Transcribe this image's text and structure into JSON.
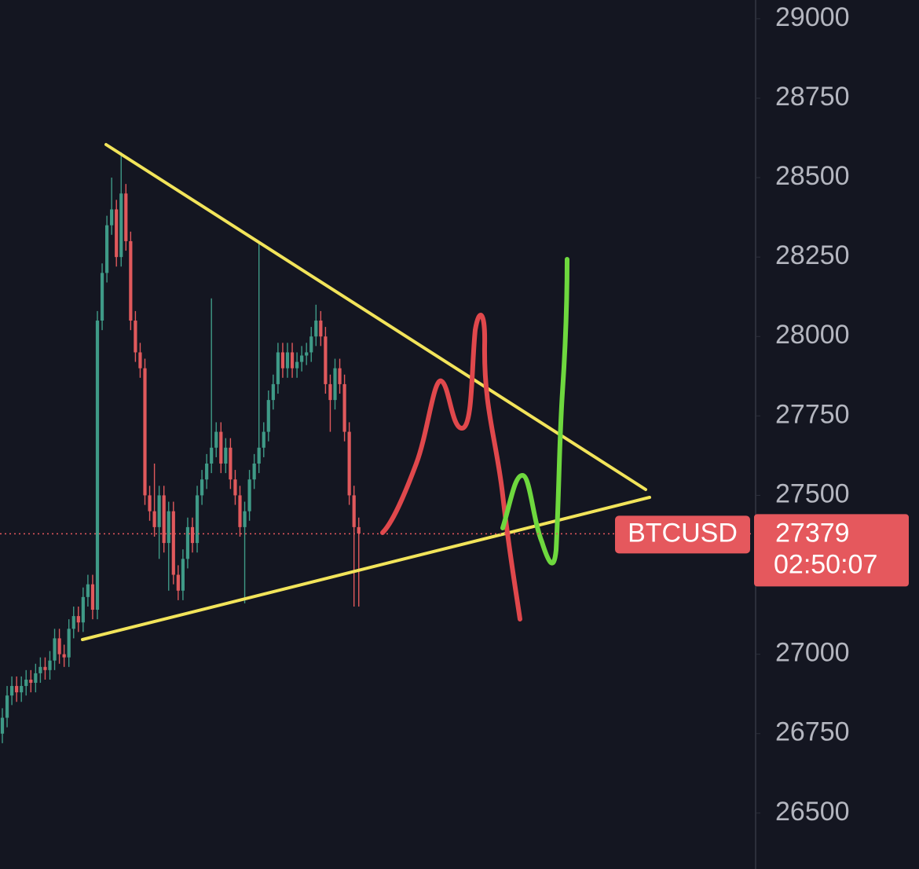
{
  "chart_data": {
    "type": "candlestick",
    "open": [
      26750,
      26800,
      26870,
      26900,
      26880,
      26900,
      26920,
      26910,
      26940,
      26960,
      26950,
      26980,
      27050,
      27000,
      26990,
      27080,
      27120,
      27100,
      27180,
      27220,
      27140,
      28050,
      28200,
      28350,
      28400,
      28250,
      28450,
      28300,
      28050,
      27950,
      27900,
      27500,
      27450,
      27400,
      27500,
      27350,
      27450,
      27250,
      27200,
      27300,
      27400,
      27350,
      27500,
      27550,
      27600,
      27650,
      27700,
      27600,
      27650,
      27550,
      27500,
      27400,
      27450,
      27550,
      27600,
      27650,
      27700,
      27800,
      27850,
      27950,
      27900,
      27950,
      27900,
      27920,
      27940,
      27950,
      28000,
      28050,
      28000,
      27850,
      27800,
      27900,
      27850,
      27700,
      27500,
      27400
    ],
    "high": [
      26830,
      26900,
      26930,
      26930,
      26930,
      26950,
      26950,
      26970,
      26990,
      26990,
      27010,
      27080,
      27080,
      27030,
      27110,
      27150,
      27150,
      27210,
      27250,
      27250,
      28080,
      28230,
      28380,
      28500,
      28430,
      28580,
      28480,
      28330,
      28080,
      27980,
      27930,
      27530,
      27600,
      27530,
      27530,
      27480,
      27480,
      27280,
      27330,
      27430,
      27430,
      27530,
      27580,
      27630,
      28120,
      27730,
      27730,
      27680,
      27680,
      27580,
      27530,
      27480,
      27580,
      27630,
      28300,
      27730,
      27830,
      27880,
      27980,
      27980,
      27980,
      27980,
      27950,
      27970,
      27980,
      28030,
      28100,
      28080,
      28030,
      27880,
      27930,
      27930,
      27880,
      27730,
      27530,
      27430
    ],
    "low": [
      26720,
      26770,
      26840,
      26850,
      26850,
      26870,
      26880,
      26880,
      26910,
      26920,
      26920,
      26950,
      26970,
      26960,
      26960,
      27050,
      27070,
      27070,
      27150,
      27110,
      27110,
      28020,
      28170,
      28320,
      28220,
      28220,
      28270,
      28020,
      27920,
      27870,
      27470,
      27420,
      27370,
      27300,
      27320,
      27200,
      27220,
      27170,
      27170,
      27270,
      27320,
      27320,
      27470,
      27520,
      27570,
      27620,
      27570,
      27570,
      27520,
      27470,
      27370,
      27160,
      27420,
      27520,
      27570,
      27620,
      27670,
      27770,
      27820,
      27870,
      27870,
      27870,
      27870,
      27890,
      27910,
      27920,
      27970,
      27970,
      27820,
      27700,
      27770,
      27820,
      27670,
      27470,
      27150,
      27150
    ],
    "close": [
      26800,
      26870,
      26900,
      26880,
      26900,
      26920,
      26910,
      26940,
      26960,
      26950,
      26980,
      27050,
      27000,
      26990,
      27080,
      27120,
      27100,
      27180,
      27220,
      27140,
      28050,
      28200,
      28350,
      28400,
      28250,
      28450,
      28300,
      28050,
      27950,
      27900,
      27500,
      27450,
      27400,
      27500,
      27350,
      27450,
      27250,
      27200,
      27300,
      27400,
      27350,
      27500,
      27550,
      27600,
      27650,
      27700,
      27600,
      27650,
      27550,
      27500,
      27400,
      27450,
      27550,
      27600,
      27650,
      27700,
      27800,
      27850,
      27950,
      27900,
      27950,
      27900,
      27920,
      27940,
      27950,
      28000,
      28050,
      28000,
      27850,
      27800,
      27900,
      27850,
      27700,
      27500,
      27400,
      27380
    ],
    "up_color": "#3f9a87",
    "down_color": "#e0595c",
    "ylim": [
      26324,
      29059
    ],
    "yticks": [
      26500,
      26750,
      27000,
      27250,
      27500,
      27750,
      28000,
      28250,
      28500,
      28750,
      29000
    ],
    "last_price": {
      "symbol": "BTCUSD",
      "value": 27379,
      "countdown": "02:50:07",
      "color": "#e5585d"
    }
  }
}
